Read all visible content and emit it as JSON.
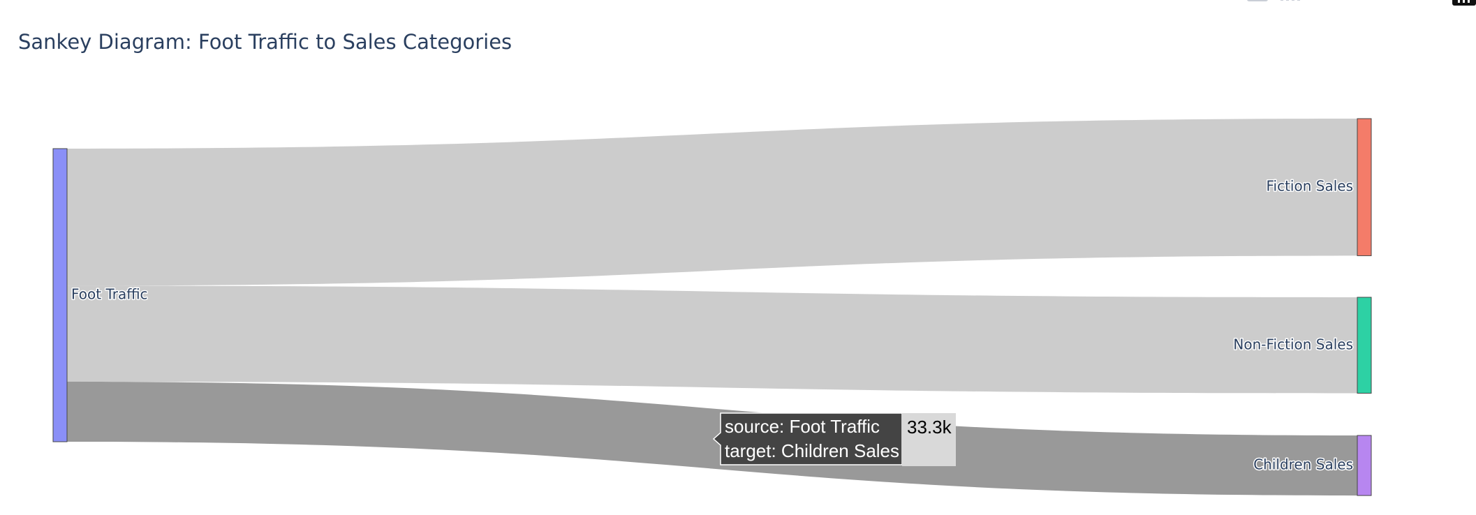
{
  "chart_data": {
    "type": "sankey",
    "title": "Sankey Diagram: Foot Traffic to Sales Categories",
    "nodes": [
      {
        "name": "Foot Traffic",
        "color": "#8a8ff7"
      },
      {
        "name": "Fiction Sales",
        "color": "#f47c69"
      },
      {
        "name": "Non-Fiction Sales",
        "color": "#2dd1a4"
      },
      {
        "name": "Children Sales",
        "color": "#b786f0"
      }
    ],
    "links": [
      {
        "source": "Foot Traffic",
        "target": "Fiction Sales",
        "value": 76000
      },
      {
        "source": "Foot Traffic",
        "target": "Non-Fiction Sales",
        "value": 53200
      },
      {
        "source": "Foot Traffic",
        "target": "Children Sales",
        "value": 33300
      }
    ],
    "link_color": "#cccccc",
    "link_hover_color": "#999999",
    "hover": {
      "source_line": "source: Foot Traffic",
      "target_line": "target: Children Sales",
      "value_label": "33.3k"
    }
  },
  "modebar_icons": [
    "camera-icon",
    "zoom-icon",
    "pan-icon",
    "lasso-icon",
    "plotly-logo-icon"
  ]
}
